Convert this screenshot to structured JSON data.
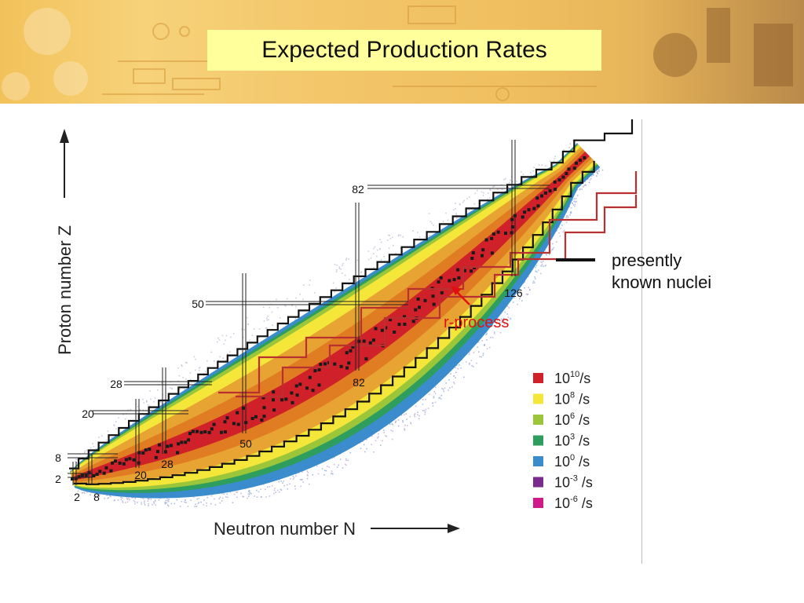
{
  "title": "Expected Production Rates",
  "chart_data": {
    "type": "heatmap",
    "xlabel": "Neutron number N",
    "ylabel": "Proton number Z",
    "magic_numbers_N": [
      {
        "label": "2"
      },
      {
        "label": "8"
      },
      {
        "label": "20"
      },
      {
        "label": "28"
      },
      {
        "label": "50"
      },
      {
        "label": "82"
      },
      {
        "label": "126"
      }
    ],
    "magic_numbers_Z": [
      {
        "label": "2"
      },
      {
        "label": "8"
      },
      {
        "label": "20"
      },
      {
        "label": "28"
      },
      {
        "label": "50"
      },
      {
        "label": "82"
      }
    ],
    "rate_legend": [
      {
        "mantissa": "10",
        "exponent": "10",
        "unit": "/s",
        "color": "#d0202a"
      },
      {
        "mantissa": "10",
        "exponent": "8",
        "unit": " /s",
        "color": "#f5e63a"
      },
      {
        "mantissa": "10",
        "exponent": "6",
        "unit": " /s",
        "color": "#9cc63a"
      },
      {
        "mantissa": "10",
        "exponent": "3",
        "unit": " /s",
        "color": "#2e9e5e"
      },
      {
        "mantissa": "10",
        "exponent": "0",
        "unit": " /s",
        "color": "#3a8ccc"
      },
      {
        "mantissa": "10",
        "exponent": "-3",
        "unit": " /s",
        "color": "#7a2a8a"
      },
      {
        "mantissa": "10",
        "exponent": "-6",
        "unit": " /s",
        "color": "#d01a8a"
      }
    ],
    "known_nuclei_label": "presently known nuclei",
    "r_process_label": "r-process",
    "colors": {
      "known_boundary": "#111111",
      "r_process": "#b83030",
      "r_process_annotation": "#e01010"
    }
  }
}
